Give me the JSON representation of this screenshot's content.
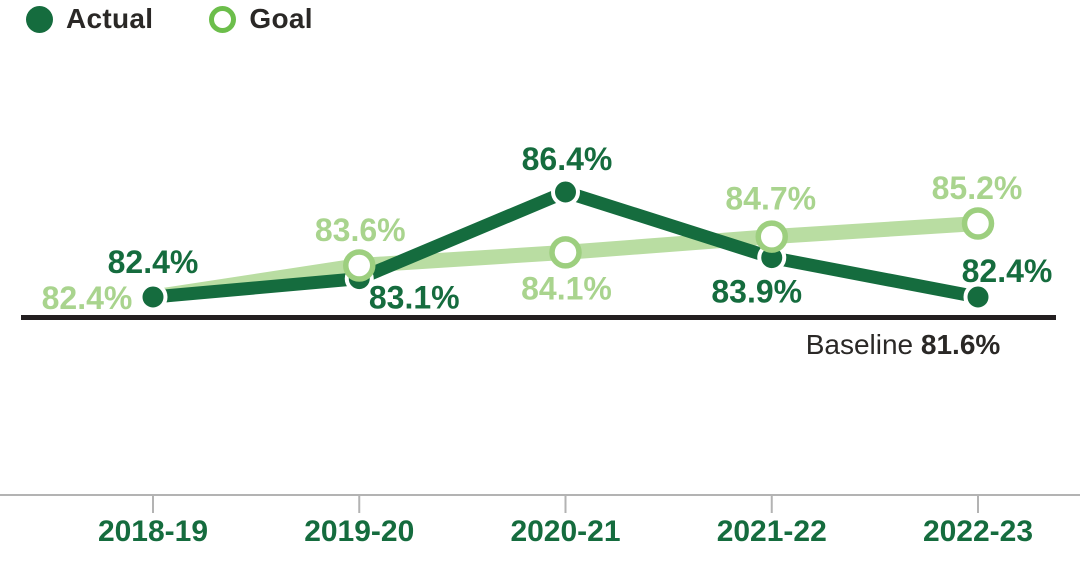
{
  "legend": {
    "items": [
      {
        "label": "Actual",
        "swatch": "filled-circle"
      },
      {
        "label": "Goal",
        "swatch": "open-circle"
      }
    ]
  },
  "colors": {
    "actual_green": "#156C3E",
    "goal_line_green": "#B9DDA2",
    "goal_label_green": "#A9D48E",
    "goal_marker_ring": "#9DCF7F",
    "legend_goal_ring": "#6CBE4B",
    "text_dark": "#2A2826",
    "baseline_rule": "#231F20",
    "axis_gray": "#B3B3B3"
  },
  "chart_data": {
    "type": "line",
    "categories": [
      "2018-19",
      "2019-20",
      "2020-21",
      "2021-22",
      "2022-23"
    ],
    "series": [
      {
        "name": "Actual",
        "marker": "filled-circle",
        "color": "#156C3E",
        "values": [
          82.4,
          83.1,
          86.4,
          83.9,
          82.4
        ],
        "labels": [
          "82.4%",
          "83.1%",
          "86.4%",
          "83.9%",
          "82.4%"
        ]
      },
      {
        "name": "Goal",
        "marker": "open-circle",
        "line_color": "#B9DDA2",
        "label_color": "#A9D48E",
        "marker_ring_color": "#9DCF7F",
        "values": [
          82.4,
          83.6,
          84.1,
          84.7,
          85.2
        ],
        "labels": [
          "82.4%",
          "83.6%",
          "84.1%",
          "84.7%",
          "85.2%"
        ],
        "markers_visible": [
          false,
          true,
          true,
          true,
          true
        ]
      }
    ],
    "baseline": {
      "prefix": "Baseline",
      "value": 81.6,
      "value_label": "81.6%"
    },
    "grid": false,
    "legend_position": "top-left",
    "x_axis": {
      "tick_marks": true
    }
  }
}
